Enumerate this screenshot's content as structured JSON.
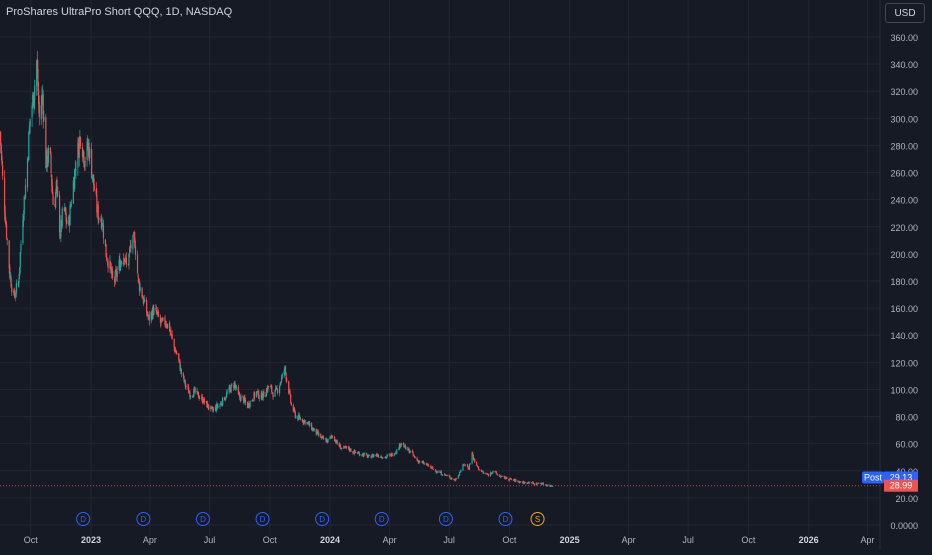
{
  "header": {
    "title": "ProShares UltraPro Short QQQ, 1D, NASDAQ",
    "currency": "USD"
  },
  "colors": {
    "background": "#161a25",
    "grid": "#232631",
    "text": "#b2b5be",
    "up": "#26a69a",
    "down": "#ef5350",
    "post_badge": "#2962ff",
    "dividend_marker": "#2962ff",
    "split_marker": "#f7a21b"
  },
  "chart_data": {
    "type": "candlestick",
    "title": "ProShares UltraPro Short QQQ, 1D, NASDAQ",
    "ylim": [
      0,
      370
    ],
    "y_ticks": [
      "0.0000",
      "20.00",
      "40.00",
      "60.00",
      "80.00",
      "100.00",
      "120.00",
      "140.00",
      "160.00",
      "180.00",
      "200.00",
      "220.00",
      "240.00",
      "260.00",
      "280.00",
      "300.00",
      "320.00",
      "340.00",
      "360.00"
    ],
    "xlim": [
      "2022-08-15",
      "2026-04-20"
    ],
    "x_ticks": [
      {
        "date": "2022-10-01",
        "label": "Oct",
        "bold": false
      },
      {
        "date": "2023-01-01",
        "label": "2023",
        "bold": true
      },
      {
        "date": "2023-04-01",
        "label": "Apr",
        "bold": false
      },
      {
        "date": "2023-07-01",
        "label": "Jul",
        "bold": false
      },
      {
        "date": "2023-10-01",
        "label": "Oct",
        "bold": false
      },
      {
        "date": "2024-01-01",
        "label": "2024",
        "bold": true
      },
      {
        "date": "2024-04-01",
        "label": "Apr",
        "bold": false
      },
      {
        "date": "2024-07-01",
        "label": "Jul",
        "bold": false
      },
      {
        "date": "2024-10-01",
        "label": "Oct",
        "bold": false
      },
      {
        "date": "2025-01-01",
        "label": "2025",
        "bold": true
      },
      {
        "date": "2025-04-01",
        "label": "Apr",
        "bold": false
      },
      {
        "date": "2025-07-01",
        "label": "Jul",
        "bold": false
      },
      {
        "date": "2025-10-01",
        "label": "Oct",
        "bold": false
      },
      {
        "date": "2026-01-01",
        "label": "2026",
        "bold": true
      },
      {
        "date": "2026-04-01",
        "label": "Apr",
        "bold": false
      }
    ],
    "price_path": [
      [
        "2022-08-15",
        290
      ],
      [
        "2022-08-19",
        255
      ],
      [
        "2022-08-24",
        222
      ],
      [
        "2022-08-30",
        185
      ],
      [
        "2022-09-05",
        168
      ],
      [
        "2022-09-12",
        178
      ],
      [
        "2022-09-19",
        230
      ],
      [
        "2022-09-24",
        255
      ],
      [
        "2022-09-30",
        300
      ],
      [
        "2022-10-06",
        320
      ],
      [
        "2022-10-10",
        342
      ],
      [
        "2022-10-14",
        300
      ],
      [
        "2022-10-19",
        318
      ],
      [
        "2022-10-24",
        268
      ],
      [
        "2022-10-30",
        275
      ],
      [
        "2022-11-05",
        230
      ],
      [
        "2022-11-09",
        250
      ],
      [
        "2022-11-15",
        215
      ],
      [
        "2022-11-20",
        235
      ],
      [
        "2022-11-27",
        218
      ],
      [
        "2022-12-03",
        245
      ],
      [
        "2022-12-09",
        268
      ],
      [
        "2022-12-16",
        288
      ],
      [
        "2022-12-22",
        270
      ],
      [
        "2022-12-28",
        280
      ],
      [
        "2023-01-04",
        255
      ],
      [
        "2023-01-11",
        230
      ],
      [
        "2023-01-18",
        225
      ],
      [
        "2023-01-24",
        200
      ],
      [
        "2023-01-30",
        190
      ],
      [
        "2023-02-04",
        178
      ],
      [
        "2023-02-09",
        185
      ],
      [
        "2023-02-15",
        195
      ],
      [
        "2023-02-21",
        200
      ],
      [
        "2023-02-25",
        188
      ],
      [
        "2023-03-02",
        205
      ],
      [
        "2023-03-09",
        210
      ],
      [
        "2023-03-14",
        180
      ],
      [
        "2023-03-19",
        172
      ],
      [
        "2023-03-24",
        162
      ],
      [
        "2023-03-30",
        152
      ],
      [
        "2023-04-06",
        158
      ],
      [
        "2023-04-12",
        155
      ],
      [
        "2023-04-18",
        148
      ],
      [
        "2023-04-25",
        150
      ],
      [
        "2023-05-01",
        145
      ],
      [
        "2023-05-07",
        132
      ],
      [
        "2023-05-13",
        125
      ],
      [
        "2023-05-19",
        112
      ],
      [
        "2023-05-26",
        102
      ],
      [
        "2023-06-01",
        97
      ],
      [
        "2023-06-08",
        98
      ],
      [
        "2023-06-15",
        95
      ],
      [
        "2023-06-21",
        92
      ],
      [
        "2023-06-28",
        88
      ],
      [
        "2023-07-05",
        84
      ],
      [
        "2023-07-12",
        87
      ],
      [
        "2023-07-19",
        90
      ],
      [
        "2023-07-25",
        95
      ],
      [
        "2023-08-01",
        100
      ],
      [
        "2023-08-08",
        104
      ],
      [
        "2023-08-14",
        95
      ],
      [
        "2023-08-21",
        93
      ],
      [
        "2023-08-28",
        88
      ],
      [
        "2023-09-04",
        93
      ],
      [
        "2023-09-11",
        98
      ],
      [
        "2023-09-17",
        94
      ],
      [
        "2023-09-23",
        97
      ],
      [
        "2023-09-30",
        103
      ],
      [
        "2023-10-07",
        96
      ],
      [
        "2023-10-13",
        100
      ],
      [
        "2023-10-19",
        108
      ],
      [
        "2023-10-24",
        115
      ],
      [
        "2023-10-28",
        105
      ],
      [
        "2023-11-03",
        88
      ],
      [
        "2023-11-10",
        80
      ],
      [
        "2023-11-18",
        78
      ],
      [
        "2023-11-26",
        76
      ],
      [
        "2023-12-03",
        72
      ],
      [
        "2023-12-11",
        68
      ],
      [
        "2023-12-19",
        64
      ],
      [
        "2023-12-28",
        62
      ],
      [
        "2024-01-05",
        66
      ],
      [
        "2024-01-12",
        60
      ],
      [
        "2024-01-20",
        56
      ],
      [
        "2024-01-28",
        57
      ],
      [
        "2024-02-05",
        54
      ],
      [
        "2024-02-13",
        53
      ],
      [
        "2024-02-21",
        52
      ],
      [
        "2024-03-01",
        50
      ],
      [
        "2024-03-10",
        52
      ],
      [
        "2024-03-18",
        51
      ],
      [
        "2024-03-26",
        50
      ],
      [
        "2024-04-04",
        52
      ],
      [
        "2024-04-12",
        55
      ],
      [
        "2024-04-19",
        61
      ],
      [
        "2024-04-26",
        56
      ],
      [
        "2024-05-03",
        54
      ],
      [
        "2024-05-12",
        48
      ],
      [
        "2024-05-20",
        46
      ],
      [
        "2024-05-29",
        44
      ],
      [
        "2024-06-07",
        41
      ],
      [
        "2024-06-15",
        39
      ],
      [
        "2024-06-24",
        37
      ],
      [
        "2024-07-03",
        35
      ],
      [
        "2024-07-10",
        33
      ],
      [
        "2024-07-17",
        39
      ],
      [
        "2024-07-24",
        45
      ],
      [
        "2024-07-31",
        42
      ],
      [
        "2024-08-05",
        53
      ],
      [
        "2024-08-09",
        46
      ],
      [
        "2024-08-16",
        41
      ],
      [
        "2024-08-23",
        38
      ],
      [
        "2024-08-30",
        37
      ],
      [
        "2024-09-06",
        40
      ],
      [
        "2024-09-13",
        37
      ],
      [
        "2024-09-21",
        35
      ],
      [
        "2024-09-30",
        34
      ],
      [
        "2024-10-08",
        33
      ],
      [
        "2024-10-16",
        32
      ],
      [
        "2024-10-25",
        31
      ],
      [
        "2024-11-01",
        32
      ],
      [
        "2024-11-08",
        30
      ],
      [
        "2024-11-16",
        31
      ],
      [
        "2024-11-24",
        30
      ],
      [
        "2024-11-30",
        29
      ],
      [
        "2024-12-06",
        29
      ]
    ],
    "current_price": 28.99,
    "post_market_price": 29.13,
    "post_label": "Post",
    "events": [
      {
        "type": "dividend",
        "date": "2022-12-20",
        "label": "D"
      },
      {
        "type": "dividend",
        "date": "2023-03-22",
        "label": "D"
      },
      {
        "type": "dividend",
        "date": "2023-06-21",
        "label": "D"
      },
      {
        "type": "dividend",
        "date": "2023-09-20",
        "label": "D"
      },
      {
        "type": "dividend",
        "date": "2023-12-20",
        "label": "D"
      },
      {
        "type": "dividend",
        "date": "2024-03-20",
        "label": "D"
      },
      {
        "type": "dividend",
        "date": "2024-06-26",
        "label": "D"
      },
      {
        "type": "dividend",
        "date": "2024-09-25",
        "label": "D"
      },
      {
        "type": "split",
        "date": "2024-11-13",
        "label": "S"
      }
    ]
  }
}
